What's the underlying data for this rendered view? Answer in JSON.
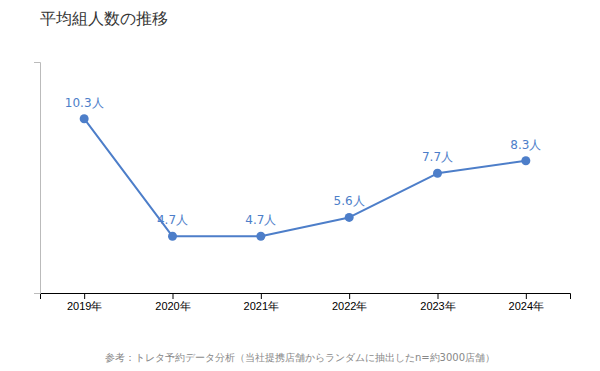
{
  "chart_data": {
    "type": "line",
    "title": "平均組人数の推移",
    "categories": [
      "2019年",
      "2020年",
      "2021年",
      "2022年",
      "2023年",
      "2024年"
    ],
    "values": [
      10.3,
      4.7,
      4.7,
      5.6,
      7.7,
      8.3
    ],
    "value_labels": [
      "10.3人",
      "4.7人",
      "4.7人",
      "5.6人",
      "7.7人",
      "8.3人"
    ],
    "data_labels": true,
    "color": "#4d7ec9",
    "marker": "circle",
    "ylim": [
      2.0,
      13.0
    ],
    "tick_labels": "x",
    "grid": false,
    "annotations": [
      "参考：トレタ予約データ分析（当社提携店舗からランダムに抽出したn=約3000店舗）"
    ]
  }
}
